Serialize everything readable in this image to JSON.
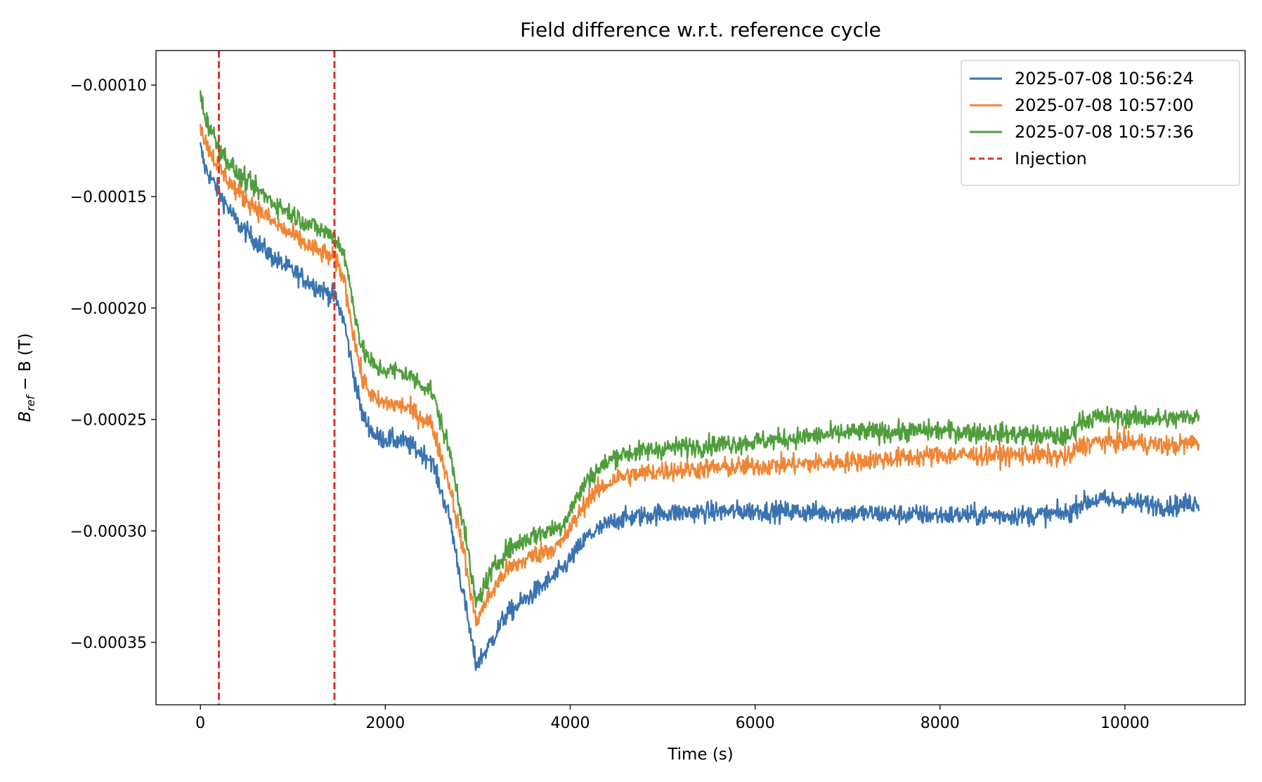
{
  "chart_data": {
    "type": "line",
    "title": "Field difference w.r.t. reference cycle",
    "xlabel": "Time (s)",
    "ylabel_main": "B",
    "ylabel_sub": "ref",
    "ylabel_rest": " − B (T)",
    "xlim": [
      -480,
      11300
    ],
    "ylim": [
      -0.000378,
      -8.45e-05
    ],
    "xticks": [
      0,
      2000,
      4000,
      6000,
      8000,
      10000
    ],
    "xtick_labels": [
      "0",
      "2000",
      "4000",
      "6000",
      "8000",
      "10000"
    ],
    "yticks": [
      -0.0001,
      -0.00015,
      -0.0002,
      -0.00025,
      -0.0003,
      -0.00035
    ],
    "ytick_labels": [
      "−0.00010",
      "−0.00015",
      "−0.00020",
      "−0.00025",
      "−0.00030",
      "−0.00035"
    ],
    "legend_position": "top-right",
    "series": [
      {
        "name": "2025-07-08 10:56:24",
        "color": "#3a73b0",
        "noise": 4.5e-06,
        "x": [
          0,
          50,
          200,
          400,
          800,
          1200,
          1450,
          1550,
          1650,
          1750,
          1900,
          2200,
          2500,
          2700,
          2850,
          2980,
          3100,
          3300,
          3600,
          3900,
          4200,
          4500,
          5000,
          6000,
          7000,
          8000,
          9000,
          9400,
          9500,
          9700,
          10000,
          10500,
          10800
        ],
        "y": [
          -0.000128,
          -0.000137,
          -0.000148,
          -0.000162,
          -0.000178,
          -0.000189,
          -0.000195,
          -0.000205,
          -0.000228,
          -0.000248,
          -0.000258,
          -0.00026,
          -0.000268,
          -0.000295,
          -0.00033,
          -0.00036,
          -0.000353,
          -0.000338,
          -0.000328,
          -0.000318,
          -0.000302,
          -0.000295,
          -0.000292,
          -0.000291,
          -0.000292,
          -0.000293,
          -0.000293,
          -0.000292,
          -0.000288,
          -0.000286,
          -0.000287,
          -0.000289,
          -0.000287
        ]
      },
      {
        "name": "2025-07-08 10:57:00",
        "color": "#ef8636",
        "noise": 4.5e-06,
        "x": [
          0,
          50,
          200,
          400,
          800,
          1200,
          1450,
          1550,
          1650,
          1750,
          1900,
          2200,
          2500,
          2700,
          2850,
          2980,
          3100,
          3300,
          3600,
          3900,
          4200,
          4500,
          5000,
          6000,
          7000,
          8000,
          9000,
          9400,
          9500,
          9700,
          10000,
          10500,
          10800
        ],
        "y": [
          -0.000118,
          -0.000125,
          -0.000137,
          -0.000148,
          -0.000162,
          -0.000173,
          -0.000178,
          -0.000186,
          -0.00021,
          -0.000232,
          -0.000242,
          -0.000244,
          -0.000252,
          -0.00028,
          -0.00031,
          -0.000341,
          -0.000331,
          -0.000318,
          -0.000311,
          -0.000306,
          -0.000285,
          -0.000276,
          -0.000273,
          -0.000271,
          -0.000269,
          -0.000266,
          -0.000266,
          -0.000267,
          -0.000262,
          -0.00026,
          -0.00026,
          -0.000262,
          -0.00026
        ]
      },
      {
        "name": "2025-07-08 10:57:36",
        "color": "#4f9e3c",
        "noise": 4.5e-06,
        "x": [
          0,
          50,
          200,
          400,
          800,
          1200,
          1450,
          1550,
          1650,
          1750,
          1900,
          2200,
          2500,
          2700,
          2850,
          2980,
          3100,
          3300,
          3600,
          3900,
          4200,
          4500,
          5000,
          6000,
          7000,
          8000,
          9000,
          9400,
          9500,
          9700,
          10000,
          10500,
          10800
        ],
        "y": [
          -0.000105,
          -0.000114,
          -0.000128,
          -0.00014,
          -0.000153,
          -0.000163,
          -0.000168,
          -0.000175,
          -0.000197,
          -0.000219,
          -0.000227,
          -0.000229,
          -0.000237,
          -0.000265,
          -0.000298,
          -0.000333,
          -0.000322,
          -0.000309,
          -0.000302,
          -0.000298,
          -0.000276,
          -0.000266,
          -0.000263,
          -0.00026,
          -0.000256,
          -0.000255,
          -0.000257,
          -0.000258,
          -0.000251,
          -0.000249,
          -0.000249,
          -0.00025,
          -0.000248
        ]
      }
    ],
    "vlines": {
      "name": "Injection",
      "color": "#e03127",
      "style": "dashed",
      "x": [
        200,
        1450
      ]
    }
  }
}
